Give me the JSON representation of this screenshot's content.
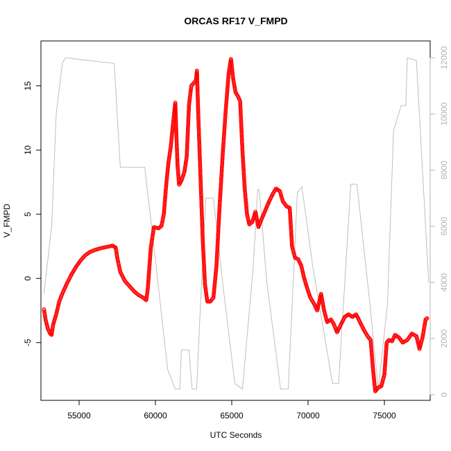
{
  "chart_data": {
    "type": "scatter",
    "title": "ORCAS RF17 V_FMPD",
    "xlabel": "UTC Seconds",
    "ylabel": "V_FMPD",
    "xlim": [
      52500,
      78000
    ],
    "ylim": [
      -9.5,
      18.5
    ],
    "x_ticks": [
      55000,
      60000,
      65000,
      70000,
      75000
    ],
    "y_ticks": [
      -5,
      0,
      5,
      10,
      15
    ],
    "y2_lim": [
      -200,
      12600
    ],
    "y2_ticks": [
      0,
      2000,
      4000,
      6000,
      8000,
      10000,
      12000
    ],
    "grid": false,
    "colors": {
      "primary_series": "#ff0000",
      "secondary_series": "#bebebe",
      "right_axis": "#b3b3b3"
    },
    "series": [
      {
        "marker": "open-circle",
        "points": [
          [
            52700,
            -2.4
          ],
          [
            52800,
            -3.2
          ],
          [
            52950,
            -3.9
          ],
          [
            53100,
            -4.3
          ],
          [
            53200,
            -4.4
          ],
          [
            53300,
            -3.6
          ],
          [
            53500,
            -2.8
          ],
          [
            53700,
            -1.8
          ],
          [
            53900,
            -1.2
          ],
          [
            54200,
            -0.4
          ],
          [
            54500,
            0.3
          ],
          [
            54800,
            0.9
          ],
          [
            55100,
            1.4
          ],
          [
            55400,
            1.8
          ],
          [
            55700,
            2.05
          ],
          [
            56000,
            2.2
          ],
          [
            56400,
            2.35
          ],
          [
            56800,
            2.45
          ],
          [
            57200,
            2.55
          ],
          [
            57400,
            2.4
          ],
          [
            57500,
            1.6
          ],
          [
            57700,
            0.5
          ],
          [
            58000,
            -0.2
          ],
          [
            58300,
            -0.6
          ],
          [
            58600,
            -1.0
          ],
          [
            58900,
            -1.3
          ],
          [
            59200,
            -1.5
          ],
          [
            59400,
            -1.7
          ],
          [
            59500,
            -0.8
          ],
          [
            59700,
            2.4
          ],
          [
            59900,
            4.0
          ],
          [
            60200,
            3.9
          ],
          [
            60400,
            4.1
          ],
          [
            60550,
            5.0
          ],
          [
            60700,
            7.2
          ],
          [
            60850,
            9.0
          ],
          [
            61000,
            10.2
          ],
          [
            61150,
            12.0
          ],
          [
            61300,
            13.7
          ],
          [
            61380,
            11.0
          ],
          [
            61450,
            8.8
          ],
          [
            61550,
            7.3
          ],
          [
            61700,
            7.6
          ],
          [
            61900,
            8.3
          ],
          [
            62050,
            9.5
          ],
          [
            62200,
            13.5
          ],
          [
            62350,
            15.0
          ],
          [
            62500,
            15.2
          ],
          [
            62650,
            15.4
          ],
          [
            62720,
            16.2
          ],
          [
            62800,
            13.0
          ],
          [
            62950,
            8.0
          ],
          [
            63100,
            3.0
          ],
          [
            63250,
            -0.5
          ],
          [
            63400,
            -1.8
          ],
          [
            63600,
            -1.8
          ],
          [
            63800,
            -1.5
          ],
          [
            64000,
            1.0
          ],
          [
            64200,
            5.5
          ],
          [
            64400,
            9.5
          ],
          [
            64600,
            13.0
          ],
          [
            64800,
            16.0
          ],
          [
            64950,
            17.1
          ],
          [
            65100,
            15.5
          ],
          [
            65250,
            14.5
          ],
          [
            65400,
            14.2
          ],
          [
            65550,
            13.8
          ],
          [
            65700,
            10.0
          ],
          [
            65850,
            7.0
          ],
          [
            66000,
            5.0
          ],
          [
            66150,
            4.2
          ],
          [
            66350,
            4.4
          ],
          [
            66550,
            5.2
          ],
          [
            66750,
            4.0
          ],
          [
            66950,
            4.6
          ],
          [
            67200,
            5.3
          ],
          [
            67450,
            6.0
          ],
          [
            67700,
            6.6
          ],
          [
            67900,
            7.0
          ],
          [
            68150,
            6.8
          ],
          [
            68350,
            6.0
          ],
          [
            68600,
            5.6
          ],
          [
            68800,
            5.5
          ],
          [
            68950,
            2.5
          ],
          [
            69150,
            1.6
          ],
          [
            69350,
            1.5
          ],
          [
            69550,
            1.0
          ],
          [
            69750,
            0.0
          ],
          [
            69950,
            -0.8
          ],
          [
            70150,
            -1.5
          ],
          [
            70400,
            -2.0
          ],
          [
            70600,
            -2.5
          ],
          [
            70850,
            -1.2
          ],
          [
            71050,
            -2.5
          ],
          [
            71250,
            -3.4
          ],
          [
            71500,
            -3.2
          ],
          [
            71700,
            -3.6
          ],
          [
            71900,
            -4.2
          ],
          [
            72150,
            -3.6
          ],
          [
            72400,
            -3.0
          ],
          [
            72650,
            -2.8
          ],
          [
            72900,
            -3.0
          ],
          [
            73150,
            -2.8
          ],
          [
            73400,
            -3.4
          ],
          [
            73650,
            -4.0
          ],
          [
            73900,
            -4.5
          ],
          [
            74100,
            -4.8
          ],
          [
            74250,
            -7.0
          ],
          [
            74400,
            -8.8
          ],
          [
            74600,
            -8.5
          ],
          [
            74800,
            -8.4
          ],
          [
            75000,
            -7.5
          ],
          [
            75150,
            -5.0
          ],
          [
            75300,
            -4.8
          ],
          [
            75500,
            -4.9
          ],
          [
            75700,
            -4.4
          ],
          [
            75950,
            -4.6
          ],
          [
            76200,
            -5.0
          ],
          [
            76500,
            -4.8
          ],
          [
            76800,
            -4.3
          ],
          [
            77100,
            -4.5
          ],
          [
            77300,
            -5.5
          ],
          [
            77500,
            -4.6
          ],
          [
            77700,
            -3.2
          ],
          [
            77800,
            -3.1
          ]
        ]
      },
      {
        "axis": "right",
        "line": true,
        "points": [
          [
            52700,
            3600
          ],
          [
            53200,
            6000
          ],
          [
            53500,
            10000
          ],
          [
            53900,
            11800
          ],
          [
            54100,
            12000
          ],
          [
            57300,
            11800
          ],
          [
            57700,
            8100
          ],
          [
            59300,
            8100
          ],
          [
            60000,
            4800
          ],
          [
            60800,
            900
          ],
          [
            61300,
            200
          ],
          [
            61600,
            200
          ],
          [
            61700,
            1600
          ],
          [
            62200,
            1600
          ],
          [
            62400,
            200
          ],
          [
            62700,
            200
          ],
          [
            62900,
            2600
          ],
          [
            63300,
            7000
          ],
          [
            63800,
            7000
          ],
          [
            64400,
            4000
          ],
          [
            65200,
            400
          ],
          [
            65700,
            200
          ],
          [
            66400,
            4500
          ],
          [
            66700,
            7300
          ],
          [
            66800,
            7300
          ],
          [
            67300,
            4000
          ],
          [
            68200,
            200
          ],
          [
            68700,
            200
          ],
          [
            69300,
            7200
          ],
          [
            69600,
            7400
          ],
          [
            70300,
            4600
          ],
          [
            71600,
            400
          ],
          [
            72000,
            400
          ],
          [
            72800,
            7500
          ],
          [
            73200,
            7500
          ],
          [
            74000,
            3500
          ],
          [
            74600,
            200
          ],
          [
            75200,
            3200
          ],
          [
            75600,
            9400
          ],
          [
            76100,
            10300
          ],
          [
            76400,
            10300
          ],
          [
            76500,
            12000
          ],
          [
            77100,
            11900
          ],
          [
            77900,
            4000
          ]
        ]
      }
    ]
  }
}
